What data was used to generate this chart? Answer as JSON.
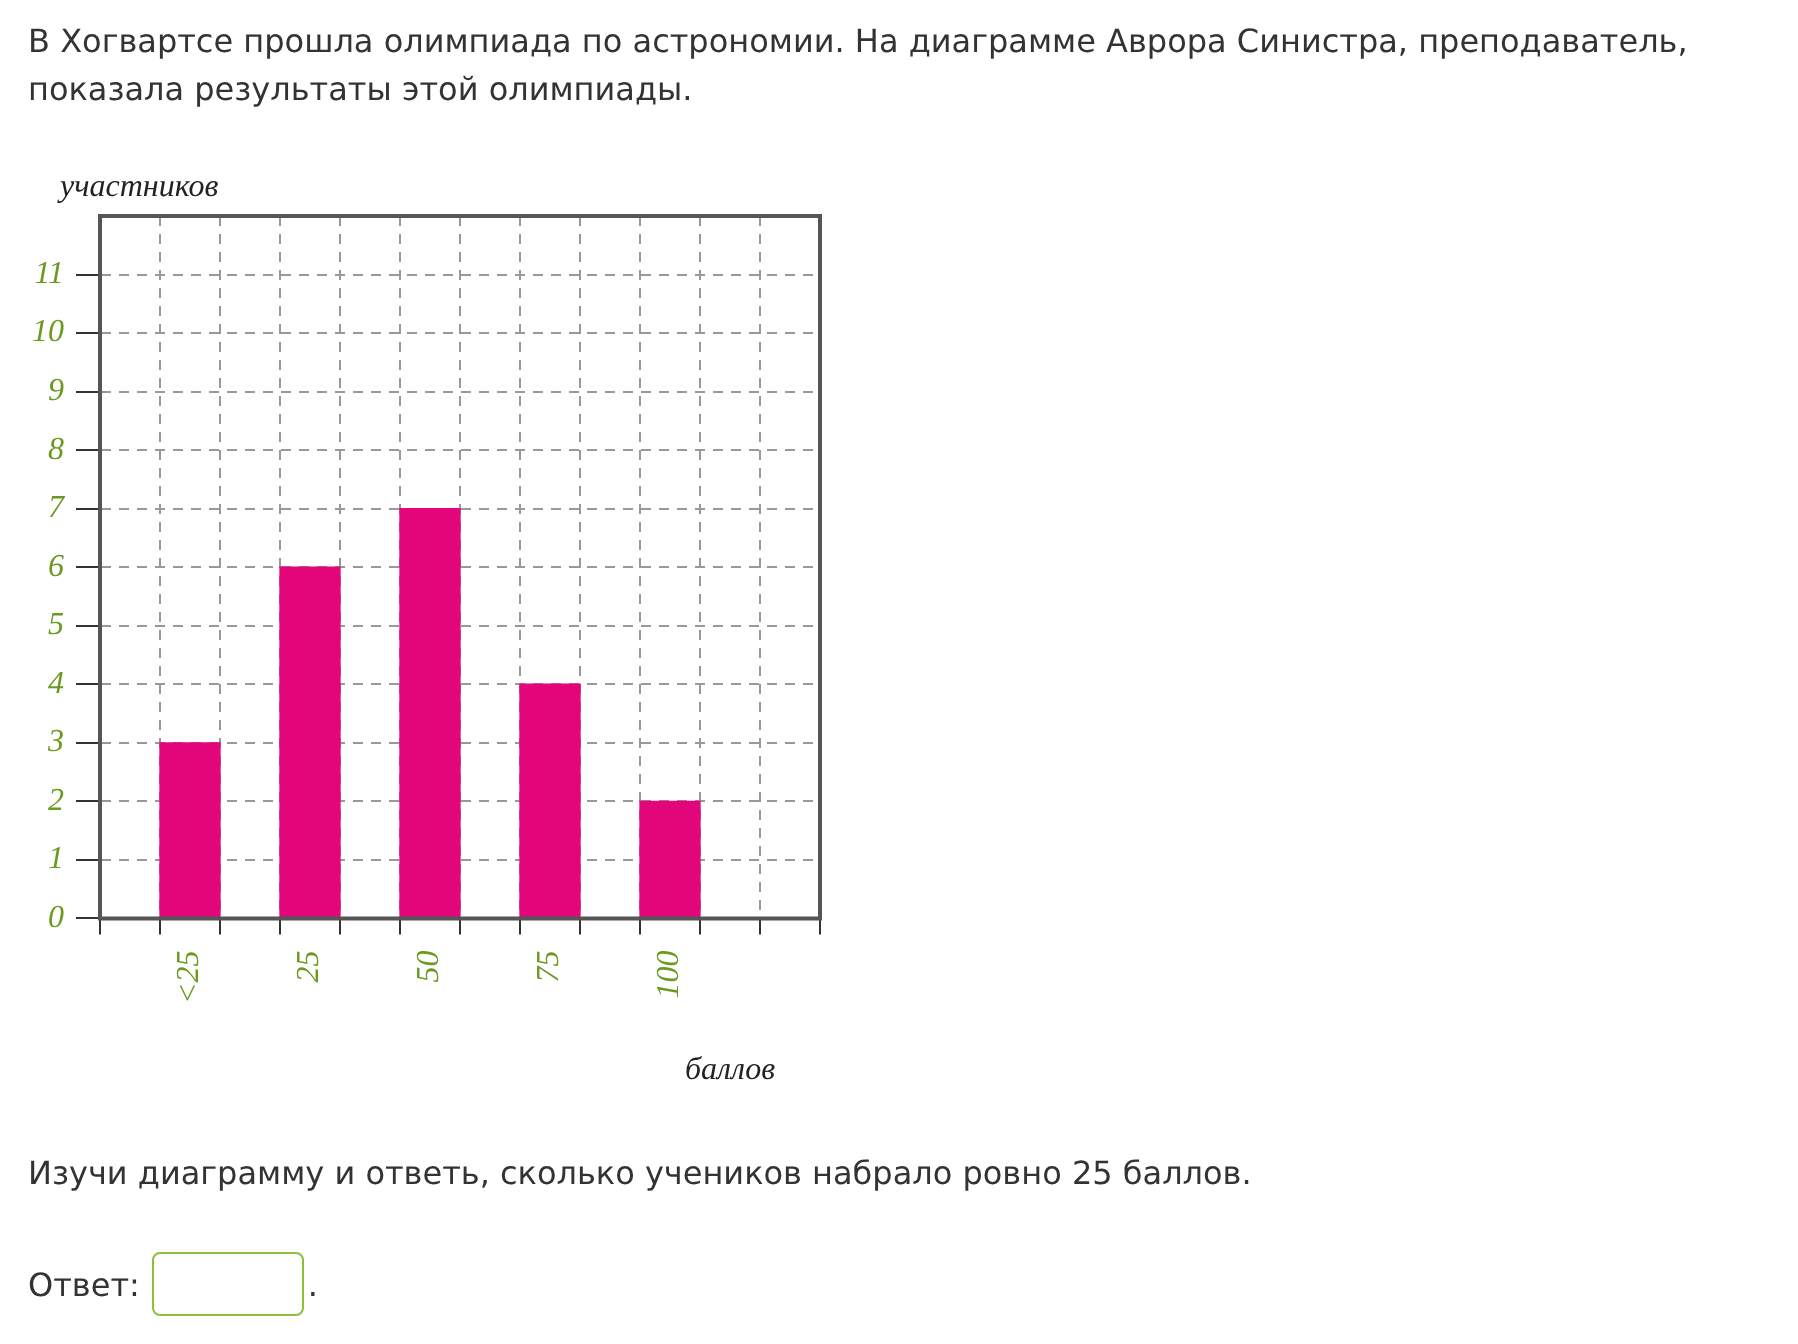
{
  "chart_data": {
    "type": "bar",
    "title": "В Хогвартсе прошла олимпиада по астрономии. На диаграмме Аврора Синистра, преподаватель, показала результаты этой олимпиады.",
    "xlabel": "баллов",
    "ylabel": "участников",
    "categories": [
      null,
      "<25",
      null,
      "25",
      null,
      "50",
      null,
      "75",
      null,
      "100",
      null,
      null
    ],
    "values": [
      null,
      3,
      null,
      6,
      null,
      7,
      null,
      4,
      null,
      2,
      null,
      null
    ],
    "color": "#e2067a",
    "ylim": [
      0,
      12
    ],
    "yticks": [
      0,
      1,
      2,
      3,
      4,
      5,
      6,
      7,
      8,
      9,
      10,
      11
    ],
    "grid": true,
    "legend": false,
    "annotations": [
      "Изучи диаграмму и ответь, сколько учеников набрало ровно 25 баллов.",
      "Ответ:",
      "."
    ]
  }
}
